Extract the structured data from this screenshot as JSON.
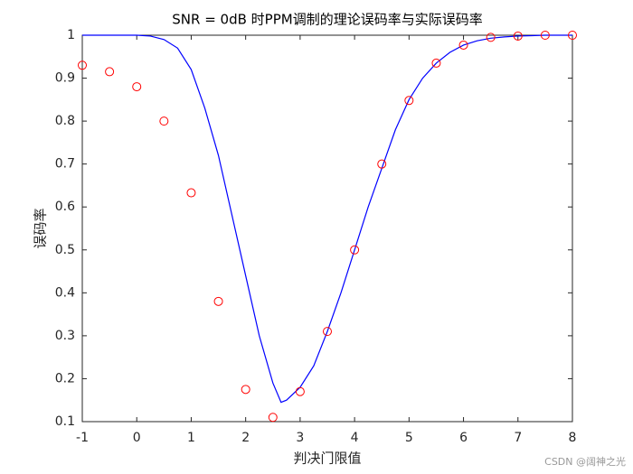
{
  "chart_data": {
    "type": "line",
    "title": "SNR = 0dB 时PPM调制的理论误码率与实际误码率",
    "xlabel": "判决门限值",
    "ylabel": "误码率",
    "xlim": [
      -1,
      8
    ],
    "ylim": [
      0.1,
      1
    ],
    "xticks": [
      -1,
      0,
      1,
      2,
      3,
      4,
      5,
      6,
      7,
      8
    ],
    "yticks": [
      0.1,
      0.2,
      0.3,
      0.4,
      0.5,
      0.6,
      0.7,
      0.8,
      0.9,
      1
    ],
    "grid": false,
    "series": [
      {
        "mode": "line",
        "color": "#0000ff",
        "x": [
          -1,
          -0.75,
          -0.5,
          -0.25,
          0,
          0.25,
          0.5,
          0.75,
          1,
          1.25,
          1.5,
          1.75,
          2,
          2.25,
          2.5,
          2.65,
          2.75,
          3,
          3.25,
          3.5,
          3.75,
          4,
          4.25,
          4.5,
          4.75,
          5,
          5.25,
          5.5,
          5.75,
          6,
          6.25,
          6.5,
          6.75,
          7,
          7.25,
          7.5,
          7.75,
          8
        ],
        "values": [
          1,
          1,
          1,
          1,
          1,
          0.998,
          0.99,
          0.97,
          0.92,
          0.83,
          0.72,
          0.58,
          0.44,
          0.3,
          0.19,
          0.145,
          0.15,
          0.18,
          0.23,
          0.31,
          0.4,
          0.5,
          0.6,
          0.69,
          0.78,
          0.85,
          0.9,
          0.935,
          0.96,
          0.977,
          0.987,
          0.993,
          0.996,
          0.998,
          0.999,
          1,
          1,
          1
        ]
      },
      {
        "mode": "marker",
        "color": "#ff0000",
        "x": [
          -1,
          -0.5,
          0,
          0.5,
          1,
          1.5,
          2,
          2.5,
          3,
          3.5,
          4,
          4.5,
          5,
          5.5,
          6,
          6.5,
          7,
          7.5,
          8
        ],
        "values": [
          0.93,
          0.915,
          0.88,
          0.8,
          0.633,
          0.38,
          0.175,
          0.11,
          0.17,
          0.31,
          0.5,
          0.7,
          0.848,
          0.935,
          0.977,
          0.995,
          0.998,
          1,
          1
        ]
      }
    ]
  },
  "watermark": "CSDN @阔神之光"
}
